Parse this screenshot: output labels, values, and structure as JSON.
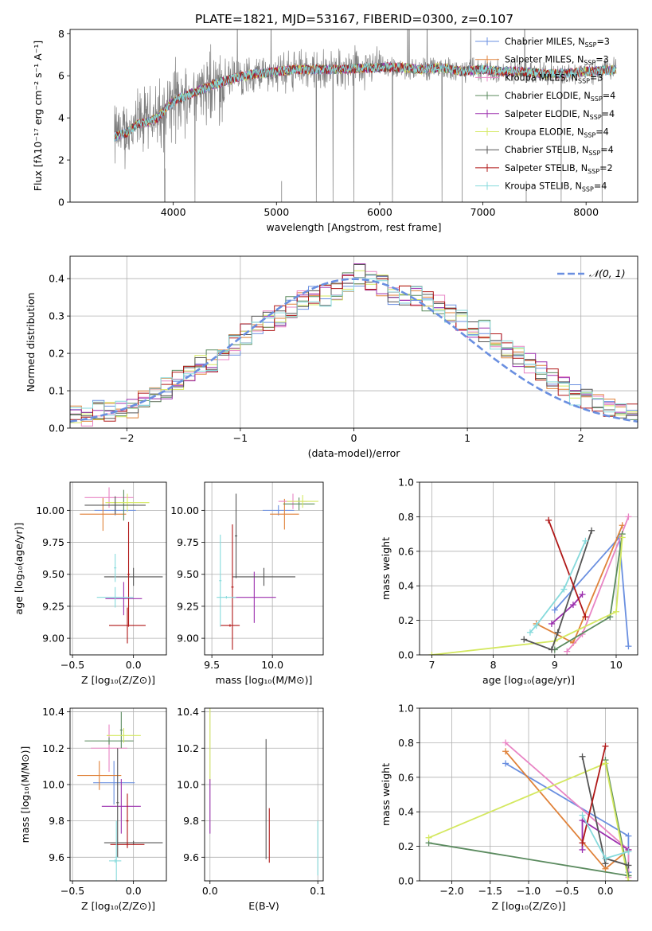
{
  "title": "PLATE=1821, MJD=53167, FIBERID=0300, z=0.107",
  "colors": {
    "Chabrier MILES": "#6a8fe0",
    "Salpeter MILES": "#e0823a",
    "Kroupa MILES": "#e884c4",
    "Chabrier ELODIE": "#5a8a5e",
    "Salpeter ELODIE": "#9b2fae",
    "Kroupa ELODIE": "#d4e860",
    "Chabrier STELIB": "#555555",
    "Salpeter STELIB": "#b01818",
    "Kroupa STELIB": "#86dadc"
  },
  "chart_data": [
    {
      "id": "spectrum",
      "type": "line",
      "xlabel": "wavelength [Angstrom, rest frame]",
      "ylabel": "Flux [fλ10⁻¹⁷ erg cm⁻² s⁻¹ A⁻¹]",
      "xlim": [
        3000,
        8500
      ],
      "ylim": [
        0,
        8.2
      ],
      "xticks": [
        4000,
        5000,
        6000,
        7000,
        8000
      ],
      "yticks": [
        0,
        2,
        4,
        6,
        8
      ],
      "grid": false,
      "legend": "top-right",
      "data_range": [
        3430,
        8290
      ],
      "model_profile": {
        "x": [
          3430,
          3550,
          3650,
          3750,
          3850,
          3950,
          4050,
          4200,
          4400,
          4600,
          4800,
          5000,
          5200,
          5400,
          5600,
          5800,
          6000,
          6200,
          6400,
          6600,
          6800,
          7000,
          7200,
          7400,
          7600,
          7800,
          8000,
          8290
        ],
        "y": [
          3.1,
          3.3,
          3.7,
          3.8,
          4.0,
          4.6,
          4.9,
          5.2,
          5.6,
          5.9,
          6.1,
          6.2,
          6.3,
          6.3,
          6.3,
          6.35,
          6.4,
          6.4,
          6.3,
          6.4,
          6.2,
          6.3,
          6.2,
          6.2,
          6.1,
          6.1,
          6.2,
          6.3
        ]
      },
      "series": [
        {
          "name": "Chabrier MILES, N_SSP=3",
          "legend_text": "Chabrier MILES, N",
          "sub": "SSP",
          "suffix": "=3"
        },
        {
          "name": "Salpeter MILES, N_SSP=3",
          "legend_text": "Salpeter MILES, N",
          "sub": "SSP",
          "suffix": "=3"
        },
        {
          "name": "Kroupa MILES, N_SSP=3",
          "legend_text": "Kroupa MILES, N",
          "sub": "SSP",
          "suffix": "=3"
        },
        {
          "name": "Chabrier ELODIE, N_SSP=4",
          "legend_text": "Chabrier ELODIE, N",
          "sub": "SSP",
          "suffix": "=4"
        },
        {
          "name": "Salpeter ELODIE, N_SSP=4",
          "legend_text": "Salpeter ELODIE, N",
          "sub": "SSP",
          "suffix": "=4"
        },
        {
          "name": "Kroupa ELODIE, N_SSP=4",
          "legend_text": "Kroupa ELODIE, N",
          "sub": "SSP",
          "suffix": "=4"
        },
        {
          "name": "Chabrier STELIB, N_SSP=4",
          "legend_text": "Chabrier STELIB, N",
          "sub": "SSP",
          "suffix": "=4"
        },
        {
          "name": "Salpeter STELIB, N_SSP=2",
          "legend_text": "Salpeter STELIB, N",
          "sub": "SSP",
          "suffix": "=2"
        },
        {
          "name": "Kroupa STELIB, N_SSP=4",
          "legend_text": "Kroupa STELIB, N",
          "sub": "SSP",
          "suffix": "=4"
        }
      ]
    },
    {
      "id": "residuals",
      "type": "line",
      "xlabel": "(data-model)/error",
      "ylabel": "Normed distribution",
      "xlim": [
        -2.5,
        2.5
      ],
      "ylim": [
        0,
        0.46
      ],
      "xticks": [
        -2,
        -1,
        0,
        1,
        2
      ],
      "yticks": [
        0.0,
        0.1,
        0.2,
        0.3,
        0.4
      ],
      "grid": true,
      "legend": "top-right",
      "legend_label": "𝒩(0, 1)",
      "normal_curve": {
        "mean": 0,
        "sigma": 1,
        "style": "dashed",
        "color": "#6a8fe0"
      },
      "histogram": {
        "bin_width": 0.1,
        "x": [
          -2.45,
          -2.35,
          -2.25,
          -2.15,
          -2.05,
          -1.95,
          -1.85,
          -1.75,
          -1.65,
          -1.55,
          -1.45,
          -1.35,
          -1.25,
          -1.15,
          -1.05,
          -0.95,
          -0.85,
          -0.75,
          -0.65,
          -0.55,
          -0.45,
          -0.35,
          -0.25,
          -0.15,
          -0.05,
          0.05,
          0.15,
          0.25,
          0.35,
          0.45,
          0.55,
          0.65,
          0.75,
          0.85,
          0.95,
          1.05,
          1.15,
          1.25,
          1.35,
          1.45,
          1.55,
          1.65,
          1.75,
          1.85,
          1.95,
          2.05,
          2.15,
          2.25,
          2.35,
          2.45
        ],
        "y": [
          0.03,
          0.035,
          0.045,
          0.04,
          0.05,
          0.055,
          0.07,
          0.085,
          0.105,
          0.125,
          0.15,
          0.17,
          0.18,
          0.205,
          0.225,
          0.25,
          0.27,
          0.285,
          0.3,
          0.325,
          0.34,
          0.35,
          0.355,
          0.36,
          0.395,
          0.41,
          0.395,
          0.38,
          0.36,
          0.355,
          0.35,
          0.34,
          0.33,
          0.3,
          0.29,
          0.27,
          0.26,
          0.24,
          0.215,
          0.19,
          0.17,
          0.155,
          0.13,
          0.11,
          0.09,
          0.075,
          0.06,
          0.05,
          0.045,
          0.04
        ]
      }
    },
    {
      "id": "age_vs_Z",
      "type": "scatter",
      "xlabel": "Z [log₁₀(Z/Z⊙)]",
      "ylabel": "age  [log₁₀(age/yr)]",
      "xlim": [
        -0.52,
        0.27
      ],
      "ylim": [
        8.87,
        10.22
      ],
      "xticks": [
        -0.5,
        0.0
      ],
      "xtick_labels": [
        "−0.5",
        "0.0"
      ],
      "yticks": [
        9.0,
        9.25,
        9.5,
        9.75,
        10.0
      ],
      "ytick_labels": [
        "9.00",
        "9.25",
        "9.50",
        "9.75",
        "10.00"
      ],
      "grid": true,
      "points": [
        {
          "s": 0,
          "x": -0.15,
          "xerr": 0.17,
          "y": 10.0,
          "yerr": 0.04
        },
        {
          "s": 1,
          "x": -0.25,
          "xerr": 0.19,
          "y": 9.97,
          "yerr": 0.13
        },
        {
          "s": 2,
          "x": -0.2,
          "xerr": 0.2,
          "y": 10.1,
          "yerr": 0.08
        },
        {
          "s": 3,
          "x": -0.08,
          "xerr": 0.1,
          "y": 10.04,
          "yerr": 0.12
        },
        {
          "s": 4,
          "x": -0.08,
          "xerr": 0.15,
          "y": 9.31,
          "yerr": 0.13
        },
        {
          "s": 5,
          "x": -0.05,
          "xerr": 0.18,
          "y": 10.06,
          "yerr": 0.07
        },
        {
          "s": 6,
          "x": -0.15,
          "xerr": 0.25,
          "y": 10.04,
          "yerr": 0.07
        },
        {
          "s": 6,
          "x": 0.0,
          "xerr": 0.24,
          "y": 9.48,
          "yerr": 0.07
        },
        {
          "s": 7,
          "x": -0.05,
          "xerr": 0.15,
          "y": 9.1,
          "yerr": 0.14
        },
        {
          "s": 7,
          "x": -0.04,
          "xerr": 0.01,
          "y": 9.5,
          "yerr": 0.41
        },
        {
          "s": 8,
          "x": -0.15,
          "xerr": 0.15,
          "y": 9.32,
          "yerr": 0.08
        },
        {
          "s": 8,
          "x": -0.15,
          "xerr": 0.01,
          "y": 9.55,
          "yerr": 0.11
        }
      ]
    },
    {
      "id": "age_vs_mass",
      "type": "scatter",
      "xlabel": "mass [log₁₀(M/M⊙)]",
      "ylabel": "",
      "xlim": [
        9.44,
        10.42
      ],
      "ylim": [
        8.87,
        10.22
      ],
      "xticks": [
        9.5,
        10.0
      ],
      "xtick_labels": [
        "9.5",
        "10.0"
      ],
      "yticks": [
        9.0,
        9.25,
        9.5,
        9.75,
        10.0
      ],
      "ytick_labels": [
        "9.00",
        "9.25",
        "9.50",
        "9.75",
        "10.00"
      ],
      "grid": true,
      "points": [
        {
          "s": 0,
          "x": 10.05,
          "xerr": 0.13,
          "y": 10.0,
          "yerr": 0.04
        },
        {
          "s": 1,
          "x": 10.1,
          "xerr": 0.12,
          "y": 9.97,
          "yerr": 0.12
        },
        {
          "s": 2,
          "x": 10.17,
          "xerr": 0.12,
          "y": 10.07,
          "yerr": 0.06
        },
        {
          "s": 3,
          "x": 10.22,
          "xerr": 0.13,
          "y": 10.05,
          "yerr": 0.05
        },
        {
          "s": 4,
          "x": 9.85,
          "xerr": 0.18,
          "y": 9.32,
          "yerr": 0.2
        },
        {
          "s": 5,
          "x": 10.25,
          "xerr": 0.13,
          "y": 10.07,
          "yerr": 0.05
        },
        {
          "s": 6,
          "x": 9.7,
          "xerr": 0.01,
          "y": 9.8,
          "yerr": 0.33
        },
        {
          "s": 6,
          "x": 9.93,
          "xerr": 0.26,
          "y": 9.48,
          "yerr": 0.07
        },
        {
          "s": 7,
          "x": 9.67,
          "xerr": 0.01,
          "y": 9.4,
          "yerr": 0.49
        },
        {
          "s": 7,
          "x": 9.65,
          "xerr": 0.08,
          "y": 9.1,
          "yerr": 0.01
        },
        {
          "s": 8,
          "x": 9.57,
          "xerr": 0.01,
          "y": 9.45,
          "yerr": 0.36
        },
        {
          "s": 8,
          "x": 9.62,
          "xerr": 0.08,
          "y": 9.32,
          "yerr": 0.01
        }
      ]
    },
    {
      "id": "weight_vs_age",
      "type": "line",
      "xlabel": "age  [log₁₀(age/yr)]",
      "ylabel": "mass weight",
      "xlim": [
        6.8,
        10.35
      ],
      "ylim": [
        0,
        1.0
      ],
      "xticks": [
        7,
        8,
        9,
        10
      ],
      "yticks": [
        0.0,
        0.2,
        0.4,
        0.6,
        0.8,
        1.0
      ],
      "grid": true,
      "series": [
        {
          "s": 0,
          "x": [
            9.0,
            10.05,
            10.2
          ],
          "y": [
            0.26,
            0.68,
            0.05
          ]
        },
        {
          "s": 1,
          "x": [
            8.7,
            9.3,
            10.1
          ],
          "y": [
            0.18,
            0.07,
            0.75
          ]
        },
        {
          "s": 2,
          "x": [
            9.2,
            9.45,
            10.2
          ],
          "y": [
            0.02,
            0.12,
            0.8
          ]
        },
        {
          "s": 3,
          "x": [
            9.0,
            9.9,
            10.1
          ],
          "y": [
            0.03,
            0.22,
            0.7
          ]
        },
        {
          "s": 4,
          "x": [
            8.95,
            9.3,
            9.45
          ],
          "y": [
            0.18,
            0.29,
            0.35
          ]
        },
        {
          "s": 5,
          "x": [
            7.0,
            9.0,
            10.0,
            10.1
          ],
          "y": [
            0.0,
            0.08,
            0.25,
            0.68
          ]
        },
        {
          "s": 6,
          "x": [
            8.5,
            8.95,
            9.05,
            9.6
          ],
          "y": [
            0.09,
            0.03,
            0.13,
            0.72
          ]
        },
        {
          "s": 7,
          "x": [
            8.9,
            9.5
          ],
          "y": [
            0.78,
            0.22
          ]
        },
        {
          "s": 8,
          "x": [
            8.6,
            8.7,
            9.15,
            9.5
          ],
          "y": [
            0.13,
            0.17,
            0.38,
            0.66
          ]
        }
      ]
    },
    {
      "id": "mass_vs_Z",
      "type": "scatter",
      "xlabel": "Z [log₁₀(Z/Z⊙)]",
      "ylabel": "mass [log₁₀(M/M⊙)]",
      "xlim": [
        -0.52,
        0.27
      ],
      "ylim": [
        9.47,
        10.42
      ],
      "xticks": [
        -0.5,
        0.0
      ],
      "xtick_labels": [
        "−0.5",
        "0.0"
      ],
      "yticks": [
        9.6,
        9.8,
        10.0,
        10.2,
        10.4
      ],
      "ytick_labels": [
        "9.6",
        "9.8",
        "10.0",
        "10.2",
        "10.4"
      ],
      "grid": true,
      "points": [
        {
          "s": 0,
          "x": -0.16,
          "xerr": 0.17,
          "y": 10.01,
          "yerr": 0.12
        },
        {
          "s": 1,
          "x": -0.28,
          "xerr": 0.18,
          "y": 10.05,
          "yerr": 0.08
        },
        {
          "s": 2,
          "x": -0.2,
          "xerr": 0.15,
          "y": 10.2,
          "yerr": 0.13
        },
        {
          "s": 3,
          "x": -0.2,
          "xerr": 0.2,
          "y": 10.24,
          "yerr": 0.02
        },
        {
          "s": 3,
          "x": -0.1,
          "xerr": 0.01,
          "y": 10.3,
          "yerr": 0.1
        },
        {
          "s": 4,
          "x": -0.1,
          "xerr": 0.16,
          "y": 9.88,
          "yerr": 0.15
        },
        {
          "s": 5,
          "x": -0.08,
          "xerr": 0.14,
          "y": 10.27,
          "yerr": 0.04
        },
        {
          "s": 6,
          "x": -0.13,
          "xerr": 0.01,
          "y": 9.9,
          "yerr": 0.3
        },
        {
          "s": 6,
          "x": 0.0,
          "xerr": 0.24,
          "y": 9.68,
          "yerr": 0.01
        },
        {
          "s": 7,
          "x": -0.05,
          "xerr": 0.14,
          "y": 9.67,
          "yerr": 0.01
        },
        {
          "s": 7,
          "x": -0.05,
          "xerr": 0.01,
          "y": 9.8,
          "yerr": 0.15
        },
        {
          "s": 8,
          "x": -0.15,
          "xerr": 0.05,
          "y": 9.58,
          "yerr": 0.01
        },
        {
          "s": 8,
          "x": -0.14,
          "xerr": 0.01,
          "y": 9.6,
          "yerr": 0.2
        }
      ]
    },
    {
      "id": "mass_vs_EBV",
      "type": "scatter",
      "xlabel": "E(B-V)",
      "ylabel": "",
      "xlim": [
        -0.005,
        0.105
      ],
      "ylim": [
        9.47,
        10.42
      ],
      "xticks": [
        0.0,
        0.1
      ],
      "xtick_labels": [
        "0.0",
        "0.1"
      ],
      "yticks": [
        9.6,
        9.8,
        10.0,
        10.2,
        10.4
      ],
      "ytick_labels": [
        "9.6",
        "9.8",
        "10.0",
        "10.2",
        "10.4"
      ],
      "grid": true,
      "points": [
        {
          "s": 5,
          "x": 0.0,
          "xerr": 0,
          "y": 10.22,
          "yerr": 0.2
        },
        {
          "s": 4,
          "x": 0.0,
          "xerr": 0,
          "y": 9.88,
          "yerr": 0.15
        },
        {
          "s": 6,
          "x": 0.052,
          "xerr": 0,
          "y": 9.92,
          "yerr": 0.33
        },
        {
          "s": 7,
          "x": 0.055,
          "xerr": 0,
          "y": 9.72,
          "yerr": 0.15
        },
        {
          "s": 8,
          "x": 0.1,
          "xerr": 0,
          "y": 9.65,
          "yerr": 0.15
        }
      ]
    },
    {
      "id": "weight_vs_Z",
      "type": "line",
      "xlabel": "Z [log₁₀(Z/Z⊙)]",
      "ylabel": "mass weight",
      "xlim": [
        -2.42,
        0.42
      ],
      "ylim": [
        0,
        1.0
      ],
      "xticks": [
        -2.0,
        -1.5,
        -1.0,
        -0.5,
        0.0
      ],
      "xtick_labels": [
        "−2.0",
        "−1.5",
        "−1.0",
        "−0.5",
        "0.0"
      ],
      "yticks": [
        0.0,
        0.2,
        0.4,
        0.6,
        0.8,
        1.0
      ],
      "grid": true,
      "series": [
        {
          "s": 0,
          "x": [
            -1.3,
            0.3,
            0.3
          ],
          "y": [
            0.68,
            0.26,
            0.05
          ]
        },
        {
          "s": 1,
          "x": [
            -1.3,
            0.0,
            0.3
          ],
          "y": [
            0.75,
            0.07,
            0.18
          ]
        },
        {
          "s": 2,
          "x": [
            -1.3,
            0.3,
            0.3
          ],
          "y": [
            0.8,
            0.18,
            0.02
          ]
        },
        {
          "s": 3,
          "x": [
            -2.3,
            0.3,
            0.0,
            0.3
          ],
          "y": [
            0.22,
            0.03,
            0.7,
            0.03
          ]
        },
        {
          "s": 4,
          "x": [
            -0.3,
            -0.3,
            0.3
          ],
          "y": [
            0.18,
            0.35,
            0.18
          ]
        },
        {
          "s": 5,
          "x": [
            -2.3,
            0.0,
            0.3
          ],
          "y": [
            0.25,
            0.68,
            0.0
          ]
        },
        {
          "s": 6,
          "x": [
            -0.3,
            0.0,
            0.0,
            0.3
          ],
          "y": [
            0.72,
            0.1,
            0.13,
            0.09
          ]
        },
        {
          "s": 7,
          "x": [
            0.0,
            -0.3
          ],
          "y": [
            0.78,
            0.22
          ]
        },
        {
          "s": 8,
          "x": [
            -0.3,
            0.0,
            0.3
          ],
          "y": [
            0.38,
            0.13,
            0.17
          ]
        }
      ]
    }
  ]
}
